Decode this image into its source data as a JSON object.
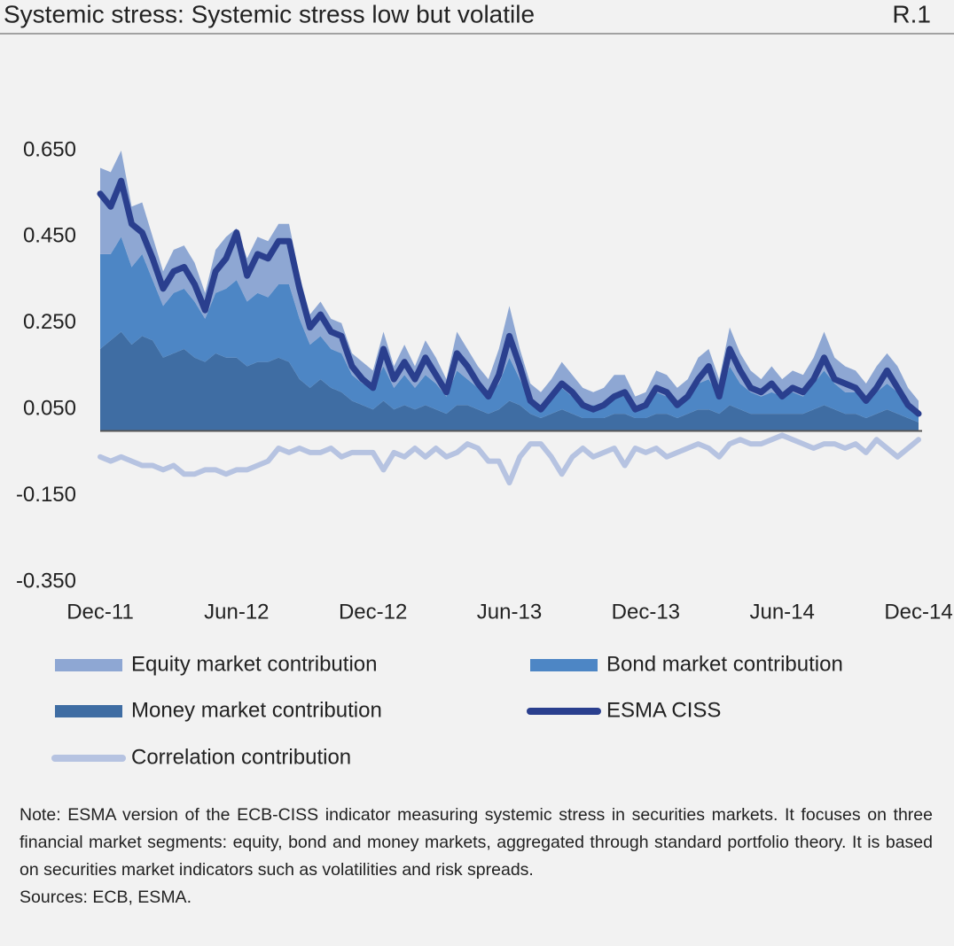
{
  "chart_data": {
    "type": "area",
    "title": "Systemic stress: Systemic stress low but volatile",
    "chart_id": "R.1",
    "categories": [
      "Dec-11",
      null,
      null,
      null,
      null,
      null,
      null,
      null,
      null,
      null,
      null,
      null,
      null,
      "Jun-12",
      null,
      null,
      null,
      null,
      null,
      null,
      null,
      null,
      null,
      null,
      null,
      null,
      "Dec-12",
      null,
      null,
      null,
      null,
      null,
      null,
      null,
      null,
      null,
      null,
      null,
      null,
      "Jun-13",
      null,
      null,
      null,
      null,
      null,
      null,
      null,
      null,
      null,
      null,
      null,
      null,
      "Dec-13",
      null,
      null,
      null,
      null,
      null,
      null,
      null,
      null,
      null,
      null,
      null,
      null,
      "Jun-14",
      null,
      null,
      null,
      null,
      null,
      null,
      null,
      null,
      null,
      null,
      null,
      null,
      "Dec-14"
    ],
    "ylim": [
      -0.35,
      0.65
    ],
    "yticks": [
      {
        "value": -0.35,
        "label": "-0.350"
      },
      {
        "value": -0.15,
        "label": "-0.150"
      },
      {
        "value": 0.05,
        "label": "0.050"
      },
      {
        "value": 0.25,
        "label": "0.250"
      },
      {
        "value": 0.45,
        "label": "0.450"
      },
      {
        "value": 0.65,
        "label": "0.650"
      }
    ],
    "series": [
      {
        "name": "Equity market contribution",
        "type": "area",
        "color": "#8ea7d3",
        "values": [
          0.2,
          0.19,
          0.2,
          0.14,
          0.12,
          0.1,
          0.08,
          0.1,
          0.1,
          0.09,
          0.06,
          0.1,
          0.12,
          0.12,
          0.1,
          0.13,
          0.13,
          0.14,
          0.14,
          0.1,
          0.07,
          0.08,
          0.07,
          0.07,
          0.05,
          0.05,
          0.04,
          0.08,
          0.05,
          0.07,
          0.05,
          0.08,
          0.06,
          0.04,
          0.09,
          0.07,
          0.05,
          0.04,
          0.08,
          0.12,
          0.07,
          0.04,
          0.03,
          0.04,
          0.06,
          0.05,
          0.04,
          0.03,
          0.04,
          0.05,
          0.05,
          0.03,
          0.03,
          0.05,
          0.05,
          0.04,
          0.04,
          0.06,
          0.07,
          0.04,
          0.09,
          0.07,
          0.05,
          0.04,
          0.06,
          0.04,
          0.05,
          0.05,
          0.06,
          0.09,
          0.06,
          0.06,
          0.05,
          0.04,
          0.06,
          0.07,
          0.06,
          0.04,
          0.03
        ]
      },
      {
        "name": "Bond market contribution",
        "type": "area",
        "color": "#4d86c5",
        "values": [
          0.22,
          0.2,
          0.22,
          0.18,
          0.19,
          0.14,
          0.12,
          0.14,
          0.14,
          0.13,
          0.1,
          0.14,
          0.16,
          0.18,
          0.15,
          0.16,
          0.15,
          0.17,
          0.18,
          0.14,
          0.1,
          0.1,
          0.09,
          0.09,
          0.06,
          0.05,
          0.05,
          0.08,
          0.05,
          0.07,
          0.05,
          0.07,
          0.06,
          0.04,
          0.08,
          0.06,
          0.05,
          0.04,
          0.06,
          0.1,
          0.06,
          0.03,
          0.03,
          0.04,
          0.05,
          0.04,
          0.03,
          0.03,
          0.03,
          0.04,
          0.04,
          0.02,
          0.03,
          0.05,
          0.04,
          0.03,
          0.04,
          0.06,
          0.07,
          0.04,
          0.09,
          0.06,
          0.05,
          0.04,
          0.05,
          0.04,
          0.05,
          0.04,
          0.06,
          0.08,
          0.06,
          0.05,
          0.05,
          0.04,
          0.05,
          0.06,
          0.05,
          0.03,
          0.02
        ]
      },
      {
        "name": "Money market contribution",
        "type": "area",
        "color": "#3f6da3",
        "values": [
          0.19,
          0.21,
          0.23,
          0.2,
          0.22,
          0.21,
          0.17,
          0.18,
          0.19,
          0.17,
          0.16,
          0.18,
          0.17,
          0.17,
          0.15,
          0.16,
          0.16,
          0.17,
          0.16,
          0.12,
          0.1,
          0.12,
          0.1,
          0.09,
          0.07,
          0.06,
          0.05,
          0.07,
          0.05,
          0.06,
          0.05,
          0.06,
          0.05,
          0.04,
          0.06,
          0.06,
          0.05,
          0.04,
          0.05,
          0.07,
          0.06,
          0.04,
          0.03,
          0.04,
          0.05,
          0.04,
          0.03,
          0.03,
          0.03,
          0.04,
          0.04,
          0.03,
          0.03,
          0.04,
          0.04,
          0.03,
          0.04,
          0.05,
          0.05,
          0.04,
          0.06,
          0.05,
          0.04,
          0.04,
          0.04,
          0.04,
          0.04,
          0.04,
          0.05,
          0.06,
          0.05,
          0.04,
          0.04,
          0.03,
          0.04,
          0.05,
          0.04,
          0.03,
          0.02
        ]
      },
      {
        "name": "ESMA CISS",
        "type": "line",
        "color": "#2a3f8e",
        "values": [
          0.55,
          0.52,
          0.58,
          0.48,
          0.46,
          0.4,
          0.33,
          0.37,
          0.38,
          0.34,
          0.28,
          0.37,
          0.4,
          0.46,
          0.36,
          0.41,
          0.4,
          0.44,
          0.44,
          0.33,
          0.24,
          0.27,
          0.23,
          0.22,
          0.15,
          0.12,
          0.1,
          0.19,
          0.12,
          0.16,
          0.12,
          0.17,
          0.13,
          0.09,
          0.18,
          0.15,
          0.11,
          0.08,
          0.13,
          0.22,
          0.15,
          0.07,
          0.05,
          0.08,
          0.11,
          0.09,
          0.06,
          0.05,
          0.06,
          0.08,
          0.09,
          0.05,
          0.06,
          0.1,
          0.09,
          0.06,
          0.08,
          0.12,
          0.15,
          0.08,
          0.19,
          0.14,
          0.1,
          0.09,
          0.11,
          0.08,
          0.1,
          0.09,
          0.12,
          0.17,
          0.12,
          0.11,
          0.1,
          0.07,
          0.1,
          0.14,
          0.1,
          0.06,
          0.04
        ]
      },
      {
        "name": "Correlation contribution",
        "type": "line",
        "color": "#b6c3e1",
        "values": [
          -0.06,
          -0.07,
          -0.06,
          -0.07,
          -0.08,
          -0.08,
          -0.09,
          -0.08,
          -0.1,
          -0.1,
          -0.09,
          -0.09,
          -0.1,
          -0.09,
          -0.09,
          -0.08,
          -0.07,
          -0.04,
          -0.05,
          -0.04,
          -0.05,
          -0.05,
          -0.04,
          -0.06,
          -0.05,
          -0.05,
          -0.05,
          -0.09,
          -0.05,
          -0.06,
          -0.04,
          -0.06,
          -0.04,
          -0.06,
          -0.05,
          -0.03,
          -0.04,
          -0.07,
          -0.07,
          -0.12,
          -0.06,
          -0.03,
          -0.03,
          -0.06,
          -0.1,
          -0.06,
          -0.04,
          -0.06,
          -0.05,
          -0.04,
          -0.08,
          -0.04,
          -0.05,
          -0.04,
          -0.06,
          -0.05,
          -0.04,
          -0.03,
          -0.04,
          -0.06,
          -0.03,
          -0.02,
          -0.03,
          -0.03,
          -0.02,
          -0.01,
          -0.02,
          -0.03,
          -0.04,
          -0.03,
          -0.03,
          -0.04,
          -0.03,
          -0.05,
          -0.02,
          -0.04,
          -0.06,
          -0.04,
          -0.02
        ]
      }
    ],
    "note": "Note: ESMA version of the ECB-CISS indicator measuring systemic stress in securities markets. It focuses on three financial market segments: equity, bond and money markets, aggregated through standard portfolio theory. It is based on securities market indicators such as volatilities and risk spreads.",
    "sources": "Sources: ECB, ESMA."
  }
}
